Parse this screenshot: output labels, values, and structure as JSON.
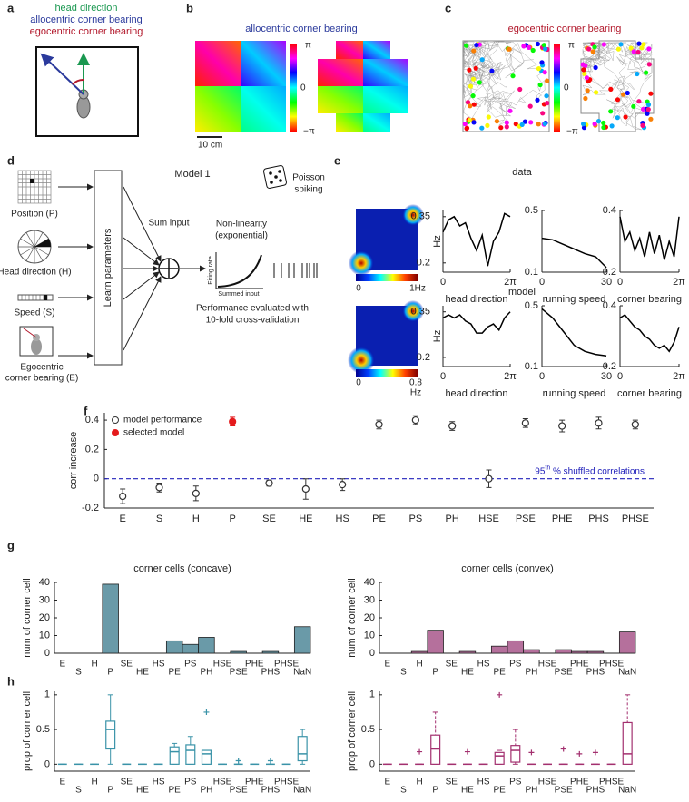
{
  "panels": {
    "a": {
      "label": "a",
      "head_direction": "head direction",
      "allocentric": "allocentric corner bearing",
      "egocentric": "egocentric corner bearing"
    },
    "b": {
      "label": "b",
      "title": "allocentric corner bearing",
      "colorbar": [
        "π",
        "0",
        "−π"
      ],
      "scale": "10 cm"
    },
    "c": {
      "label": "c",
      "title": "egocentric corner bearing",
      "colorbar": [
        "π",
        "0",
        "−π"
      ]
    },
    "d": {
      "label": "d",
      "title": "Model 1",
      "inputs": [
        "Position (P)",
        "Head direction (H)",
        "Speed (S)",
        "Egocentric",
        "corner bearing (E)"
      ],
      "learn": "Learn parameters",
      "sum": "Sum input",
      "nonlin": [
        "Non-linearity",
        "(exponential)"
      ],
      "poisson": [
        "Poisson",
        "spiking"
      ],
      "axis_y": "Firing rate",
      "axis_x": "Summed input",
      "perf": [
        "Performance evaluated with",
        "10-fold cross-validation"
      ]
    },
    "e": {
      "label": "e",
      "rows": [
        "data",
        "model"
      ],
      "colorbars": [
        [
          "0",
          "1Hz"
        ],
        [
          "0",
          "0.8",
          "Hz"
        ]
      ]
    },
    "f": {
      "label": "f"
    },
    "g": {
      "label": "g"
    },
    "h": {
      "label": "h"
    }
  },
  "chart_data": [
    {
      "type": "line",
      "xlabel": "head direction",
      "ylabel": "Hz",
      "color": "#000000",
      "x": [
        0,
        0.5236,
        1.0472,
        1.5708,
        2.0944,
        2.618,
        3.1416,
        3.6652,
        4.1888,
        4.7124,
        5.236,
        5.7596,
        6.2832
      ],
      "values": [
        0.3,
        0.34,
        0.35,
        0.32,
        0.33,
        0.28,
        0.24,
        0.29,
        0.19,
        0.27,
        0.3,
        0.36,
        0.35
      ],
      "xlim": [
        0,
        6.2832
      ],
      "xticks": [
        0,
        {
          "value": 6.2832,
          "label": "2π"
        }
      ],
      "ylim": [
        0.17,
        0.37
      ],
      "yticks": [
        0.2,
        0.35
      ]
    },
    {
      "type": "line",
      "xlabel": "running speed",
      "color": "#000000",
      "x": [
        0,
        5,
        10,
        15,
        20,
        25,
        30
      ],
      "values": [
        0.32,
        0.31,
        0.28,
        0.25,
        0.22,
        0.2,
        0.13
      ],
      "xlim": [
        0,
        30
      ],
      "xticks": [
        0,
        30
      ],
      "ylim": [
        0.1,
        0.5
      ],
      "yticks": [
        0.1,
        0.5
      ]
    },
    {
      "type": "line",
      "xlabel": "corner bearing",
      "color": "#000000",
      "x": [
        0,
        0.5236,
        1.0472,
        1.5708,
        2.0944,
        2.618,
        3.1416,
        3.6652,
        4.1888,
        4.7124,
        5.236,
        5.7596,
        6.2832
      ],
      "values": [
        0.38,
        0.3,
        0.33,
        0.27,
        0.31,
        0.25,
        0.33,
        0.26,
        0.32,
        0.24,
        0.3,
        0.25,
        0.38
      ],
      "xlim": [
        0,
        6.2832
      ],
      "xticks": [
        0,
        {
          "value": 6.2832,
          "label": "2π"
        }
      ],
      "ylim": [
        0.2,
        0.4
      ],
      "yticks": [
        0.2,
        0.4
      ]
    },
    {
      "type": "line",
      "xlabel": "head direction",
      "ylabel": "Hz",
      "color": "#000000",
      "x": [
        0,
        0.5236,
        1.0472,
        1.5708,
        2.0944,
        2.618,
        3.1416,
        3.6652,
        4.1888,
        4.7124,
        5.236,
        5.7596,
        6.2832
      ],
      "values": [
        0.33,
        0.34,
        0.33,
        0.34,
        0.32,
        0.31,
        0.28,
        0.28,
        0.3,
        0.31,
        0.29,
        0.33,
        0.35
      ],
      "xlim": [
        0,
        6.2832
      ],
      "xticks": [
        0,
        {
          "value": 6.2832,
          "label": "2π"
        }
      ],
      "ylim": [
        0.17,
        0.37
      ],
      "yticks": [
        0.2,
        0.35
      ]
    },
    {
      "type": "line",
      "xlabel": "running speed",
      "color": "#000000",
      "x": [
        0,
        5,
        10,
        15,
        20,
        25,
        30
      ],
      "values": [
        0.48,
        0.42,
        0.33,
        0.24,
        0.2,
        0.18,
        0.17
      ],
      "xlim": [
        0,
        30
      ],
      "xticks": [
        0,
        30
      ],
      "ylim": [
        0.1,
        0.5
      ],
      "yticks": [
        0.1,
        0.5
      ]
    },
    {
      "type": "line",
      "xlabel": "corner bearing",
      "color": "#000000",
      "x": [
        0,
        0.5236,
        1.0472,
        1.5708,
        2.0944,
        2.618,
        3.1416,
        3.6652,
        4.1888,
        4.7124,
        5.236,
        5.7596,
        6.2832
      ],
      "values": [
        0.36,
        0.37,
        0.35,
        0.33,
        0.32,
        0.3,
        0.29,
        0.27,
        0.26,
        0.27,
        0.25,
        0.28,
        0.33
      ],
      "xlim": [
        0,
        6.2832
      ],
      "xticks": [
        0,
        {
          "value": 6.2832,
          "label": "2π"
        }
      ],
      "ylim": [
        0.2,
        0.4
      ],
      "yticks": [
        0.2,
        0.4
      ]
    },
    {
      "type": "errorbar",
      "ylabel": "corr increase",
      "legend": "upper left",
      "categories": [
        "E",
        "S",
        "H",
        "P",
        "SE",
        "HE",
        "HS",
        "PE",
        "PS",
        "PH",
        "HSE",
        "PSE",
        "PHE",
        "PHS",
        "PHSE"
      ],
      "series": [
        {
          "name": "model performance",
          "color": "#333333",
          "filled": false,
          "values": [
            -0.12,
            -0.06,
            -0.1,
            null,
            -0.03,
            -0.07,
            -0.04,
            0.37,
            0.4,
            0.36,
            0.0,
            0.38,
            0.36,
            0.38,
            0.37
          ],
          "errors": [
            0.05,
            0.03,
            0.05,
            null,
            0.02,
            0.07,
            0.04,
            0.03,
            0.03,
            0.03,
            0.06,
            0.03,
            0.04,
            0.04,
            0.03
          ]
        },
        {
          "name": "selected model",
          "color": "#e41a1c",
          "filled": true,
          "values": [
            null,
            null,
            null,
            0.39,
            null,
            null,
            null,
            null,
            null,
            null,
            null,
            null,
            null,
            null,
            null
          ],
          "errors": [
            null,
            null,
            null,
            0.03,
            null,
            null,
            null,
            null,
            null,
            null,
            null,
            null,
            null,
            null,
            null
          ]
        }
      ],
      "hline": 0,
      "hline_color": "#2222bb",
      "annotation": [
        "95",
        "th",
        " % shuffled correlations"
      ],
      "ylim": [
        -0.2,
        0.45
      ],
      "yticks": [
        -0.2,
        0,
        0.2,
        0.4
      ]
    },
    {
      "type": "bar",
      "title": "corner cells (concave)",
      "ylabel": "num of corner cell",
      "color": "#6a9aa8",
      "categories": [
        "E",
        "S",
        "H",
        "P",
        "SE",
        "HE",
        "HS",
        "PE",
        "PS",
        "PH",
        "HSE",
        "PSE",
        "PHE",
        "PHS",
        "PHSE",
        "NaN"
      ],
      "values": [
        0,
        0,
        0,
        39,
        0,
        0,
        0,
        7,
        5,
        9,
        0,
        1,
        0,
        1,
        0,
        15
      ],
      "ylim": [
        0,
        40
      ],
      "yticks": [
        0,
        10,
        20,
        30,
        40
      ]
    },
    {
      "type": "bar",
      "title": "corner cells (convex)",
      "ylabel": "num of corner cell",
      "color": "#b5709c",
      "categories": [
        "E",
        "S",
        "H",
        "P",
        "SE",
        "HE",
        "HS",
        "PE",
        "PS",
        "PH",
        "HSE",
        "PSE",
        "PHE",
        "PHS",
        "PHSE",
        "NaN"
      ],
      "values": [
        0,
        0,
        1,
        13,
        0,
        1,
        0,
        4,
        7,
        2,
        0,
        2,
        1,
        1,
        0,
        12
      ],
      "ylim": [
        0,
        40
      ],
      "yticks": [
        0,
        10,
        20,
        30,
        40
      ]
    },
    {
      "type": "box",
      "ylabel": "prop of corner cell",
      "color": "#3a93a8",
      "whisker_dashed": false,
      "categories": [
        "E",
        "S",
        "H",
        "P",
        "SE",
        "HE",
        "HS",
        "PE",
        "PS",
        "PH",
        "HSE",
        "PSE",
        "PHE",
        "PHS",
        "PHSE",
        "NaN"
      ],
      "whisker_low": [
        0,
        0,
        0,
        0,
        0,
        0,
        0,
        0,
        0,
        0,
        0,
        0,
        0,
        0,
        0,
        0
      ],
      "q1": [
        0,
        0,
        0,
        0.22,
        0,
        0,
        0,
        0,
        0,
        0,
        0,
        0,
        0,
        0,
        0,
        0.05
      ],
      "median": [
        0,
        0,
        0,
        0.5,
        0,
        0,
        0,
        0.18,
        0.2,
        0.15,
        0,
        0,
        0,
        0,
        0,
        0.15
      ],
      "q3": [
        0,
        0,
        0,
        0.62,
        0,
        0,
        0,
        0.25,
        0.28,
        0.2,
        0,
        0,
        0,
        0,
        0,
        0.4
      ],
      "whisker_high": [
        0,
        0,
        0,
        1,
        0,
        0,
        0,
        0.3,
        0.4,
        0.2,
        0,
        0,
        0,
        0,
        0,
        0.5
      ],
      "outliers": [
        [],
        [],
        [],
        [],
        [],
        [],
        [],
        [],
        [],
        [
          0.75
        ],
        [],
        [
          0.05
        ],
        [],
        [
          0.05
        ],
        [],
        []
      ],
      "ylim": [
        -0.1,
        1.05
      ],
      "yticks": [
        0,
        0.5,
        1
      ]
    },
    {
      "type": "box",
      "ylabel": "prop of corner cell",
      "color": "#a3306f",
      "whisker_dashed": true,
      "categories": [
        "E",
        "S",
        "H",
        "P",
        "SE",
        "HE",
        "HS",
        "PE",
        "PS",
        "PH",
        "HSE",
        "PSE",
        "PHE",
        "PHS",
        "PHSE",
        "NaN"
      ],
      "whisker_low": [
        0,
        0,
        0,
        0,
        0,
        0,
        0,
        0,
        0,
        0,
        0,
        0,
        0,
        0,
        0,
        0
      ],
      "q1": [
        0,
        0,
        0,
        0,
        0,
        0,
        0,
        0,
        0.03,
        0,
        0,
        0,
        0,
        0,
        0,
        0
      ],
      "median": [
        0,
        0,
        0,
        0.22,
        0,
        0,
        0,
        0.12,
        0.2,
        0,
        0,
        0,
        0,
        0,
        0,
        0.15
      ],
      "q3": [
        0,
        0,
        0,
        0.42,
        0,
        0,
        0,
        0.17,
        0.27,
        0,
        0,
        0,
        0,
        0,
        0,
        0.6
      ],
      "whisker_high": [
        0,
        0,
        0,
        0.75,
        0,
        0,
        0,
        0.2,
        0.5,
        0,
        0,
        0,
        0,
        0,
        0,
        1
      ],
      "outliers": [
        [],
        [],
        [
          0.18
        ],
        [],
        [],
        [
          0.18
        ],
        [],
        [
          1
        ],
        [],
        [
          0.17
        ],
        [],
        [
          0.22
        ],
        [
          0.15
        ],
        [
          0.17
        ],
        [],
        []
      ],
      "ylim": [
        -0.1,
        1.05
      ],
      "yticks": [
        0,
        0.5,
        1
      ]
    }
  ]
}
